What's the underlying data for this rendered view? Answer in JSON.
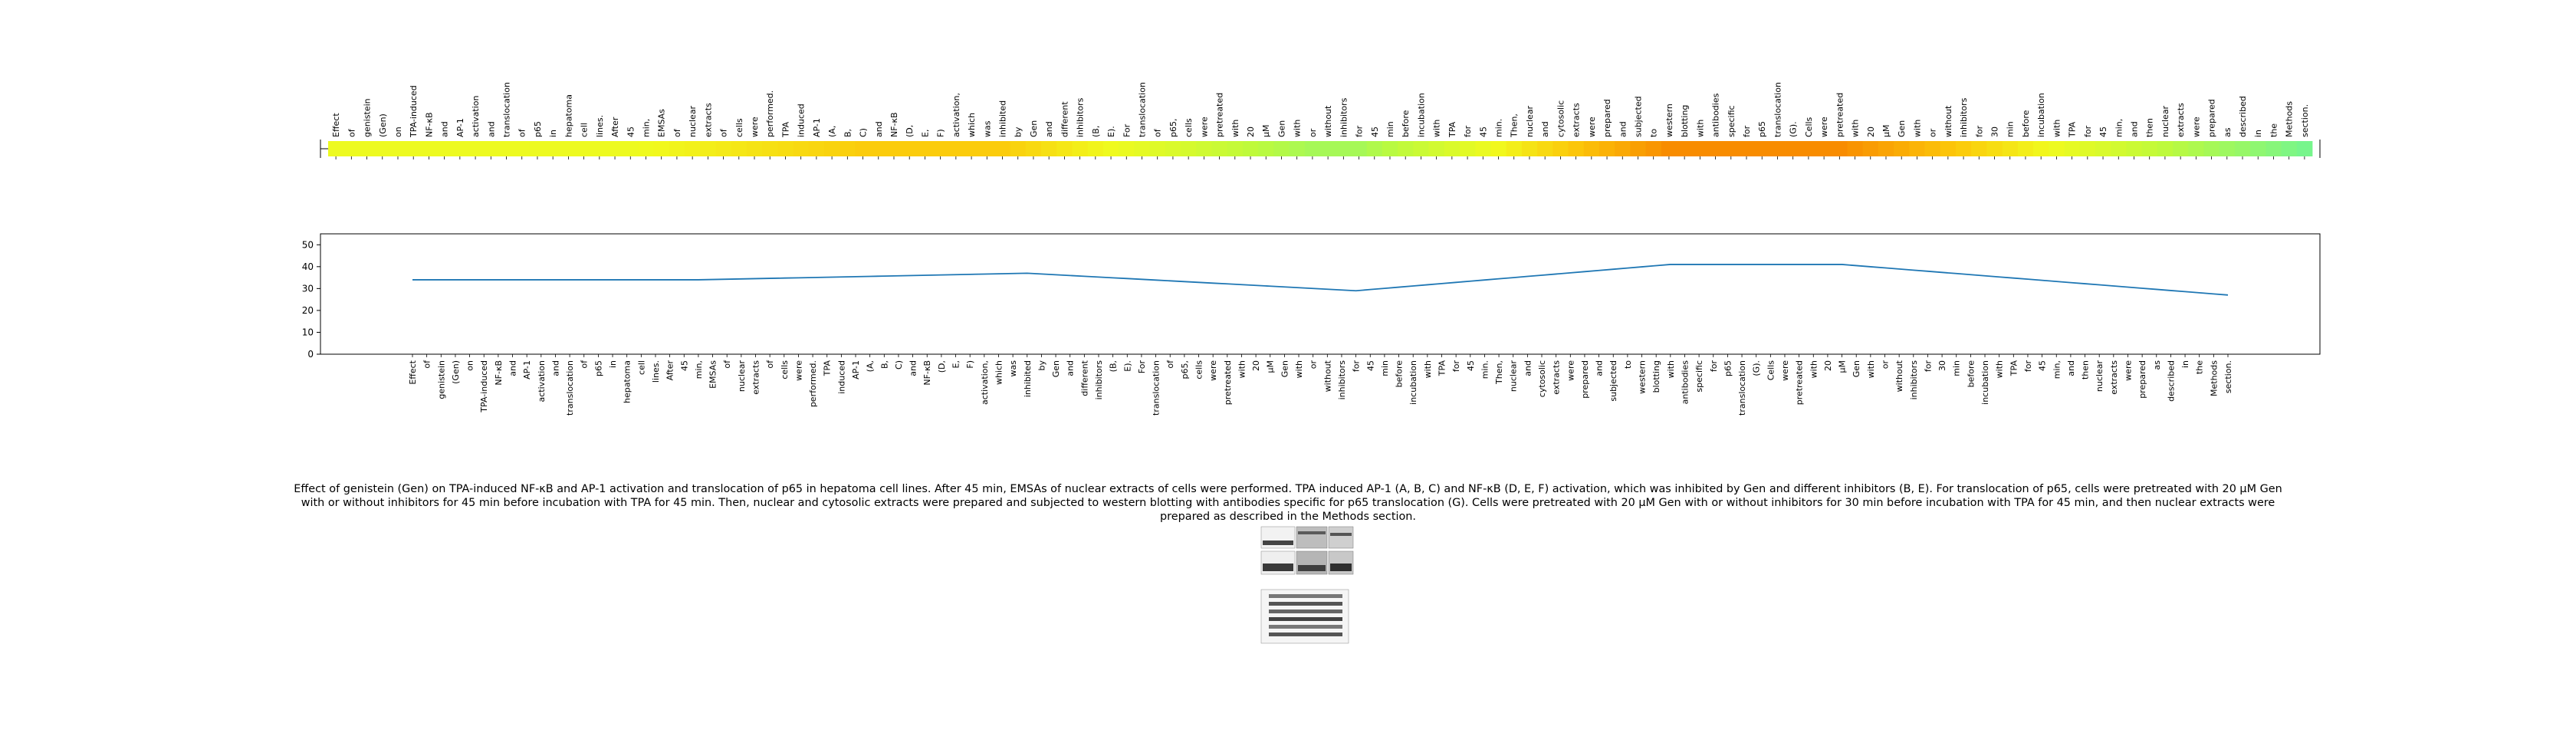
{
  "chart_data": [
    {
      "type": "heatmap",
      "title": "",
      "tokens": [
        "Effect",
        "of",
        "genistein",
        "(Gen)",
        "on",
        "TPA-induced",
        "NF-κB",
        "and",
        "AP-1",
        "activation",
        "and",
        "translocation",
        "of",
        "p65",
        "in",
        "hepatoma",
        "cell",
        "lines.",
        "After",
        "45",
        "min,",
        "EMSAs",
        "of",
        "nuclear",
        "extracts",
        "of",
        "cells",
        "were",
        "performed.",
        "TPA",
        "induced",
        "AP-1",
        "(A,",
        "B,",
        "C)",
        "and",
        "NF-κB",
        "(D,",
        "E,",
        "F)",
        "activation,",
        "which",
        "was",
        "inhibited",
        "by",
        "Gen",
        "and",
        "different",
        "inhibitors",
        "(B,",
        "E).",
        "For",
        "translocation",
        "of",
        "p65,",
        "cells",
        "were",
        "pretreated",
        "with",
        "20",
        "μM",
        "Gen",
        "with",
        "or",
        "without",
        "inhibitors",
        "for",
        "45",
        "min",
        "before",
        "incubation",
        "with",
        "TPA",
        "for",
        "45",
        "min.",
        "Then,",
        "nuclear",
        "and",
        "cytosolic",
        "extracts",
        "were",
        "prepared",
        "and",
        "subjected",
        "to",
        "western",
        "blotting",
        "with",
        "antibodies",
        "specific",
        "for",
        "p65",
        "translocation",
        "(G).",
        "Cells",
        "were",
        "pretreated",
        "with",
        "20",
        "μM",
        "Gen",
        "with",
        "or",
        "without",
        "inhibitors",
        "for",
        "30",
        "min",
        "before",
        "incubation",
        "with",
        "TPA",
        "for",
        "45",
        "min,",
        "and",
        "then",
        "nuclear",
        "extracts",
        "were",
        "prepared",
        "as",
        "described",
        "in",
        "the",
        "Methods",
        "section."
      ],
      "values": [
        34,
        34,
        34,
        34,
        34,
        34,
        34,
        34,
        34,
        34,
        34,
        34,
        34,
        34,
        34,
        34,
        34,
        34,
        34,
        34,
        34.2,
        34.4,
        34.6,
        34.8,
        35,
        35.2,
        35.4,
        35.6,
        35.8,
        36,
        36.2,
        36.4,
        36.6,
        36.8,
        37,
        37,
        37,
        37,
        37,
        37,
        37,
        37,
        37,
        37,
        36.6,
        36.2,
        35.8,
        35.4,
        35,
        34.6,
        34.2,
        33.8,
        33.4,
        33,
        32.6,
        32.2,
        31.8,
        31.4,
        31,
        30.6,
        30.2,
        29.8,
        29.4,
        29,
        29,
        29,
        29,
        29.6,
        30.2,
        30.8,
        31.4,
        32,
        32.6,
        33.2,
        33.8,
        34.4,
        35,
        35.6,
        36.2,
        36.8,
        37.4,
        38,
        38.6,
        39.2,
        39.8,
        40.4,
        41,
        41,
        41,
        41,
        41,
        41,
        41,
        41,
        41,
        41,
        41,
        41,
        40.5,
        40,
        39.5,
        39,
        38.5,
        38,
        37.5,
        37,
        36.5,
        36,
        35.5,
        35,
        34.5,
        34,
        33.5,
        33,
        32.5,
        32,
        31.5,
        31,
        30.5,
        30,
        29.5,
        29,
        28.5,
        28,
        27.5,
        27,
        26.5,
        26,
        26
      ]
    },
    {
      "type": "line",
      "title": "",
      "xlabel": "",
      "ylabel": "",
      "ylim": [
        0,
        55
      ],
      "yticks": [
        0,
        10,
        20,
        30,
        40,
        50
      ],
      "grid": false,
      "series": [
        {
          "x_key": "tokens",
          "anchor_x": [
            0,
            20,
            43,
            66,
            88,
            100,
            129
          ],
          "anchor_y": [
            34,
            34,
            37,
            29,
            41,
            41,
            26
          ]
        }
      ]
    }
  ],
  "caption": "Effect of genistein (Gen) on TPA-induced NF-κB and AP-1 activation and translocation of p65 in hepatoma cell lines. After 45 min, EMSAs of nuclear extracts of cells were performed. TPA induced AP-1 (A, B, C) and NF-κB (D, E, F) activation, which was inhibited by Gen and different inhibitors (B, E). For translocation of p65, cells were pretreated with 20 μM Gen with or without inhibitors for 45 min before incubation with TPA for 45 min. Then, nuclear and cytosolic extracts were prepared and subjected to western blotting with antibodies specific for p65 translocation (G). Cells were pretreated with 20 μM Gen with or without inhibitors for 30 min before incubation with TPA for 45 min, and then nuclear extracts were prepared as described in the Methods section.",
  "colors": {
    "line": "#1f77b4",
    "axis": "#000000"
  }
}
